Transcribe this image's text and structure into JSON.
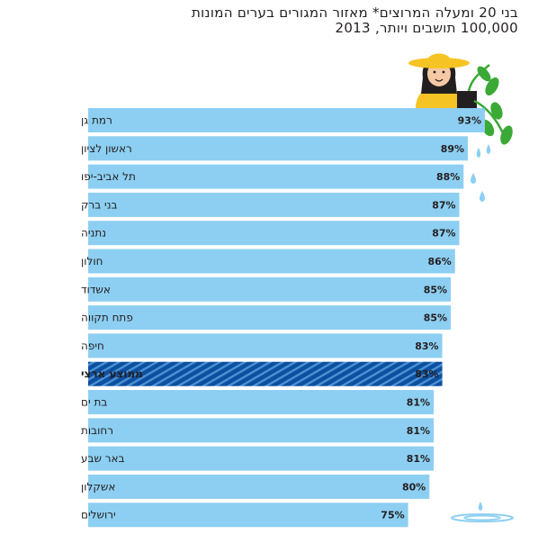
{
  "title": {
    "line1": "בני 20 ומעלה המרוצים* מאזור המגורים בערים המונות",
    "line2": "100,000 תושבים ויותר, 2013"
  },
  "colors": {
    "bar": "#8dcff2",
    "average_bar": "#0d4fa0",
    "average_stripe": "#4b92d4",
    "text": "#231f20",
    "skin": "#f4c9a4",
    "hat": "#f6c324",
    "shirt": "#f6c324",
    "pot": "#231f20",
    "leaf": "#3aa935",
    "water": "#8dcff2"
  },
  "illustration": {
    "icons": [
      "woman-with-hat-icon",
      "plant-icon",
      "water-drop-icon",
      "water-puddle-icon"
    ]
  },
  "chart_data": {
    "type": "bar",
    "orientation": "horizontal",
    "categories": [
      "רמת גן",
      "ראשון לציון",
      "תל אביב-יפו",
      "בני ברק",
      "נתניה",
      "חולון",
      "אשדוד",
      "פתח תקווה",
      "חיפה",
      "ממוצע ארצי",
      "בת ים",
      "רחובות",
      "באר שבע",
      "אשקלון",
      "ירושלים"
    ],
    "values": [
      93,
      89,
      88,
      87,
      87,
      86,
      85,
      85,
      83,
      83,
      81,
      81,
      81,
      80,
      75
    ],
    "value_labels": [
      "93%",
      "89%",
      "88%",
      "87%",
      "87%",
      "86%",
      "85%",
      "85%",
      "83%",
      "83%",
      "81%",
      "81%",
      "81%",
      "80%",
      "75%"
    ],
    "highlight_category": "ממוצע ארצי",
    "unit": "%",
    "xlim": [
      0,
      100
    ],
    "grid": false,
    "legend": "none"
  }
}
